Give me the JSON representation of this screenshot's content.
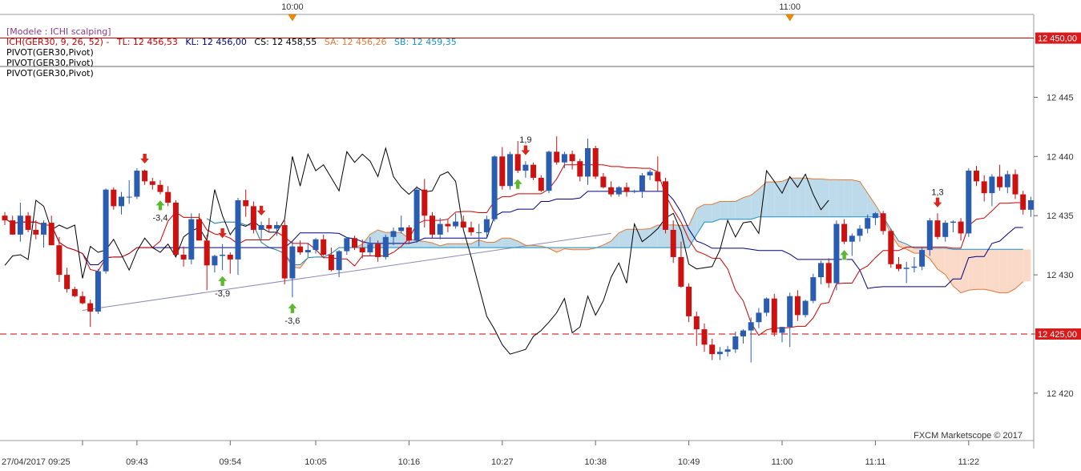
{
  "legend": {
    "model": "[Modele : ICHI scalping]",
    "ichimoku_label": "ICH(GER30, 9, 26, 52) -",
    "tl_text": "TL: 12 456,53",
    "kl_text": "KL: 12 456,00",
    "cs_text": "CS: 12 458,55",
    "sa_text": "SA: 12 456,26",
    "sb_text": "SB: 12 459,35",
    "pivot_lines": [
      "PIVOT(GER30,Pivot)",
      "PIVOT(GER30,Pivot)",
      "PIVOT(GER30,Pivot)"
    ]
  },
  "colors": {
    "tl": "#cc0000",
    "kl": "#000080",
    "cs": "#000000",
    "sa": "#e07a3a",
    "sb": "#1f8fc0",
    "bull": "#2a5db0",
    "bear": "#cc1111",
    "cloud_bull": "#bcdaea",
    "cloud_bear": "#fad9c8",
    "price_tag": "#d81b1b",
    "marker": "#f08c00",
    "arrow_up": "#5cb82e",
    "arrow_down": "#d9261c"
  },
  "top_axis": {
    "labels": [
      "10:00",
      "11:00"
    ]
  },
  "watermark": "FXCM Marketscope © 2017",
  "chart_data": {
    "type": "candlestick",
    "title": "",
    "instrument": "GER30",
    "y_axis": {
      "ticks": [
        "12 445",
        "12 440",
        "12 435",
        "12 430",
        "12 425",
        "12 420"
      ],
      "range": [
        12416,
        12452
      ]
    },
    "x_axis": {
      "ticks": [
        "27/04/2017 09:25",
        "09:43",
        "09:54",
        "10:05",
        "10:16",
        "10:27",
        "10:38",
        "10:49",
        "11:00",
        "11:11",
        "11:22"
      ]
    },
    "price_tags": [
      {
        "label": "12 450,00",
        "value": 12450
      },
      {
        "label": "12 425,00",
        "value": 12425
      }
    ],
    "horizontal_lines": [
      {
        "value": 12450,
        "style": "solid",
        "color": "#cc0000"
      },
      {
        "value": 12447.6,
        "style": "solid",
        "color": "#666666"
      },
      {
        "value": 12425,
        "style": "dashed",
        "color": "#cc0000"
      }
    ],
    "trendline": {
      "from": [
        10,
        12427
      ],
      "to": [
        78,
        12433.5
      ]
    },
    "candles": [
      [
        12435.0,
        12435.3,
        12434.2,
        12434.6
      ],
      [
        12434.6,
        12435.0,
        12433.4,
        12433.4
      ],
      [
        12433.4,
        12436.1,
        12432.8,
        12435.0
      ],
      [
        12435.0,
        12435.3,
        12433.6,
        12433.8
      ],
      [
        12433.8,
        12434.6,
        12433.0,
        12433.4
      ],
      [
        12433.4,
        12434.6,
        12432.3,
        12434.4
      ],
      [
        12434.4,
        12435.0,
        12432.5,
        12432.5
      ],
      [
        12432.5,
        12433.2,
        12429.4,
        12430.0
      ],
      [
        12430.0,
        12430.6,
        12428.5,
        12428.8
      ],
      [
        12428.8,
        12429.0,
        12428.1,
        12428.2
      ],
      [
        12428.2,
        12428.6,
        12427.5,
        12427.6
      ],
      [
        12427.6,
        12427.9,
        12425.6,
        12426.9
      ],
      [
        12426.9,
        12430.5,
        12426.7,
        12430.3
      ],
      [
        12430.3,
        12437.3,
        12430.1,
        12437.2
      ],
      [
        12437.2,
        12437.4,
        12435.5,
        12435.8
      ],
      [
        12435.8,
        12437.0,
        12435.1,
        12436.6
      ],
      [
        12436.6,
        12438.0,
        12436.0,
        12436.6
      ],
      [
        12436.6,
        12439.0,
        12436.4,
        12438.8
      ],
      [
        12438.8,
        12438.9,
        12437.6,
        12437.9
      ],
      [
        12437.9,
        12438.2,
        12437.2,
        12437.6
      ],
      [
        12437.6,
        12438.0,
        12436.8,
        12437.0
      ],
      [
        12437.0,
        12437.5,
        12435.8,
        12436.1
      ],
      [
        12436.1,
        12436.3,
        12431.6,
        12431.7
      ],
      [
        12431.7,
        12432.4,
        12430.7,
        12431.3
      ],
      [
        12431.3,
        12435.2,
        12430.9,
        12434.7
      ],
      [
        12434.7,
        12435.2,
        12432.9,
        12432.9
      ],
      [
        12432.9,
        12433.4,
        12428.7,
        12430.8
      ],
      [
        12430.8,
        12431.7,
        12430.2,
        12431.6
      ],
      [
        12431.6,
        12432.6,
        12430.4,
        12431.7
      ],
      [
        12431.7,
        12431.9,
        12430.1,
        12431.3
      ],
      [
        12431.3,
        12436.5,
        12430.0,
        12436.3
      ],
      [
        12436.3,
        12437.2,
        12434.9,
        12435.8
      ],
      [
        12435.8,
        12436.2,
        12433.5,
        12433.8
      ],
      [
        12433.8,
        12434.5,
        12433.0,
        12434.2
      ],
      [
        12434.2,
        12434.8,
        12433.6,
        12433.9
      ],
      [
        12433.9,
        12434.5,
        12433.3,
        12434.2
      ],
      [
        12434.2,
        12434.6,
        12429.2,
        12429.7
      ],
      [
        12429.7,
        12432.8,
        12428.1,
        12432.4
      ],
      [
        12432.4,
        12432.9,
        12431.7,
        12431.9
      ],
      [
        12431.9,
        12432.7,
        12431.5,
        12432.1
      ],
      [
        12432.1,
        12433.1,
        12431.8,
        12433.0
      ],
      [
        12433.0,
        12433.4,
        12431.6,
        12431.7
      ],
      [
        12431.7,
        12432.3,
        12430.3,
        12430.4
      ],
      [
        12430.4,
        12432.1,
        12429.8,
        12432.0
      ],
      [
        12432.0,
        12433.2,
        12431.7,
        12433.1
      ],
      [
        12433.1,
        12433.3,
        12432.1,
        12432.3
      ],
      [
        12432.3,
        12433.0,
        12431.4,
        12431.9
      ],
      [
        12431.9,
        12433.2,
        12431.6,
        12432.6
      ],
      [
        12432.6,
        12432.9,
        12431.1,
        12431.5
      ],
      [
        12431.5,
        12433.4,
        12431.3,
        12433.2
      ],
      [
        12433.2,
        12434.0,
        12432.5,
        12433.7
      ],
      [
        12433.7,
        12435.0,
        12433.5,
        12434.0
      ],
      [
        12434.0,
        12434.2,
        12432.6,
        12432.9
      ],
      [
        12432.9,
        12437.5,
        12432.7,
        12437.2
      ],
      [
        12437.2,
        12438.1,
        12434.0,
        12435.0
      ],
      [
        12435.0,
        12435.3,
        12433.1,
        12433.4
      ],
      [
        12433.4,
        12434.8,
        12433.0,
        12434.3
      ],
      [
        12434.3,
        12434.7,
        12433.6,
        12434.1
      ],
      [
        12434.1,
        12435.2,
        12433.9,
        12434.5
      ],
      [
        12434.5,
        12435.0,
        12433.9,
        12434.0
      ],
      [
        12434.0,
        12434.5,
        12433.3,
        12433.6
      ],
      [
        12433.6,
        12434.3,
        12432.4,
        12433.6
      ],
      [
        12433.6,
        12435.0,
        12433.2,
        12434.7
      ],
      [
        12434.7,
        12440.1,
        12434.5,
        12440.0
      ],
      [
        12440.0,
        12440.8,
        12437.2,
        12437.5
      ],
      [
        12437.5,
        12440.4,
        12437.2,
        12440.2
      ],
      [
        12440.2,
        12441.3,
        12438.6,
        12438.8
      ],
      [
        12438.8,
        12439.6,
        12438.2,
        12439.3
      ],
      [
        12439.3,
        12439.5,
        12438.0,
        12438.2
      ],
      [
        12438.2,
        12438.4,
        12437.0,
        12437.1
      ],
      [
        12437.1,
        12440.5,
        12436.9,
        12440.4
      ],
      [
        12440.4,
        12441.7,
        12439.3,
        12439.5
      ],
      [
        12439.5,
        12440.4,
        12439.0,
        12440.2
      ],
      [
        12440.2,
        12440.5,
        12438.9,
        12439.6
      ],
      [
        12439.6,
        12439.8,
        12437.9,
        12438.3
      ],
      [
        12438.3,
        12441.5,
        12437.6,
        12440.7
      ],
      [
        12440.7,
        12440.9,
        12438.1,
        12438.3
      ],
      [
        12438.3,
        12438.6,
        12437.3,
        12437.4
      ],
      [
        12437.4,
        12437.9,
        12436.6,
        12436.8
      ],
      [
        12436.8,
        12437.5,
        12436.6,
        12437.4
      ],
      [
        12437.4,
        12437.8,
        12436.6,
        12437.0
      ],
      [
        12437.0,
        12437.2,
        12436.9,
        12437.1
      ],
      [
        12437.1,
        12438.6,
        12436.5,
        12438.4
      ],
      [
        12438.4,
        12438.9,
        12438.0,
        12438.7
      ],
      [
        12438.7,
        12440.0,
        12437.1,
        12437.9
      ],
      [
        12437.9,
        12438.2,
        12433.5,
        12433.8
      ],
      [
        12433.8,
        12434.6,
        12431.0,
        12431.5
      ],
      [
        12431.5,
        12432.8,
        12428.9,
        12429.0
      ],
      [
        12429.0,
        12429.3,
        12426.0,
        12426.5
      ],
      [
        12426.5,
        12426.9,
        12424.0,
        12425.4
      ],
      [
        12425.4,
        12425.9,
        12423.5,
        12424.1
      ],
      [
        12424.1,
        12424.6,
        12422.8,
        12423.3
      ],
      [
        12423.3,
        12423.9,
        12422.8,
        12423.5
      ],
      [
        12423.5,
        12424.0,
        12423.1,
        12423.7
      ],
      [
        12423.7,
        12425.2,
        12423.4,
        12424.8
      ],
      [
        12424.8,
        12425.4,
        12424.2,
        12425.3
      ],
      [
        12425.3,
        12426.4,
        12422.6,
        12426.0
      ],
      [
        12426.0,
        12427.2,
        12425.5,
        12426.8
      ],
      [
        12426.8,
        12428.1,
        12426.5,
        12428.0
      ],
      [
        12428.0,
        12428.4,
        12424.8,
        12425.1
      ],
      [
        12425.1,
        12425.6,
        12424.3,
        12425.6
      ],
      [
        12425.6,
        12428.5,
        12423.9,
        12428.2
      ],
      [
        12428.2,
        12428.7,
        12426.1,
        12426.6
      ],
      [
        12426.6,
        12427.9,
        12426.4,
        12427.8
      ],
      [
        12427.8,
        12430.1,
        12427.6,
        12429.8
      ],
      [
        12429.8,
        12431.2,
        12429.2,
        12431.0
      ],
      [
        12431.0,
        12431.4,
        12428.9,
        12429.3
      ],
      [
        12429.3,
        12434.6,
        12428.7,
        12434.3
      ],
      [
        12434.3,
        12434.7,
        12432.6,
        12432.8
      ],
      [
        12432.8,
        12433.5,
        12431.6,
        12433.3
      ],
      [
        12433.3,
        12434.2,
        12432.8,
        12433.9
      ],
      [
        12433.9,
        12435.1,
        12433.5,
        12434.8
      ],
      [
        12434.8,
        12435.3,
        12434.2,
        12435.2
      ],
      [
        12435.2,
        12435.4,
        12433.4,
        12433.7
      ],
      [
        12433.7,
        12433.9,
        12430.6,
        12430.9
      ],
      [
        12430.9,
        12431.5,
        12430.3,
        12430.5
      ],
      [
        12430.5,
        12431.1,
        12429.3,
        12430.6
      ],
      [
        12430.6,
        12431.5,
        12430.2,
        12430.7
      ],
      [
        12430.7,
        12432.3,
        12430.4,
        12432.1
      ],
      [
        12432.1,
        12434.8,
        12431.6,
        12434.6
      ],
      [
        12434.6,
        12435.2,
        12433.0,
        12433.2
      ],
      [
        12433.2,
        12434.6,
        12432.8,
        12434.4
      ],
      [
        12434.4,
        12434.6,
        12433.6,
        12434.5
      ],
      [
        12434.5,
        12434.8,
        12432.9,
        12433.5
      ],
      [
        12433.5,
        12439.0,
        12433.2,
        12438.8
      ],
      [
        12438.8,
        12439.2,
        12437.5,
        12437.9
      ],
      [
        12437.9,
        12438.4,
        12436.2,
        12436.9
      ],
      [
        12436.9,
        12438.5,
        12435.8,
        12438.3
      ],
      [
        12438.3,
        12439.3,
        12437.1,
        12437.4
      ],
      [
        12437.4,
        12438.8,
        12436.9,
        12438.5
      ],
      [
        12438.5,
        12438.9,
        12436.4,
        12436.8
      ],
      [
        12436.8,
        12437.1,
        12435.1,
        12435.5
      ],
      [
        12435.5,
        12436.6,
        12434.9,
        12436.3
      ]
    ],
    "signals": [
      {
        "index": 18,
        "dir": "down",
        "pos": "above",
        "label": ""
      },
      {
        "index": 20,
        "dir": "up",
        "pos": "below",
        "label": "-3,4"
      },
      {
        "index": 28,
        "dir": "down",
        "pos": "above",
        "label": ""
      },
      {
        "index": 28,
        "dir": "up",
        "pos": "below",
        "label": "-3,9"
      },
      {
        "index": 33,
        "dir": "down",
        "pos": "above",
        "label": ""
      },
      {
        "index": 37,
        "dir": "up",
        "pos": "below",
        "label": "-3,6"
      },
      {
        "index": 67,
        "dir": "down",
        "pos": "above",
        "label": "1,9"
      },
      {
        "index": 66,
        "dir": "up",
        "pos": "below",
        "label": ""
      },
      {
        "index": 108,
        "dir": "up",
        "pos": "below",
        "label": ""
      },
      {
        "index": 120,
        "dir": "down",
        "pos": "above",
        "label": "1,3"
      }
    ]
  }
}
